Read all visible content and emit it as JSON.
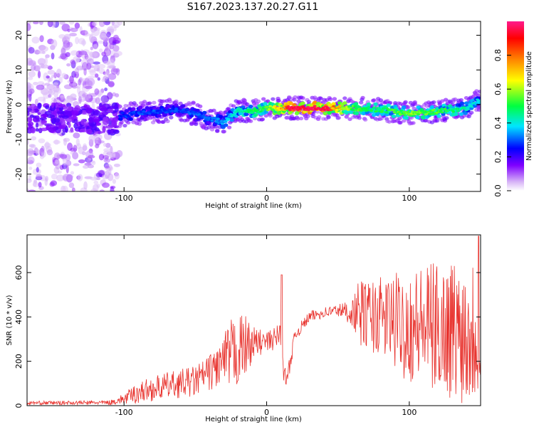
{
  "title": "S167.2023.137.20.27.G11",
  "colors": {
    "axis": "#000000",
    "snr_line": "#e8332e",
    "background": "#ffffff"
  },
  "chart_data": [
    {
      "type": "heatmap",
      "xlabel": "Height of straight line (km)",
      "ylabel": "Frequency (Hz)",
      "xlim": [
        -168,
        150
      ],
      "ylim": [
        -25,
        24
      ],
      "x_ticks": [
        -100,
        0,
        100
      ],
      "y_ticks": [
        -20,
        -10,
        0,
        10,
        20
      ],
      "grid": false,
      "colormap": {
        "label": "Normalized spectral amplitude",
        "range": [
          0.0,
          1.0
        ],
        "ticks": [
          0.0,
          0.2,
          0.4,
          0.6,
          0.8
        ],
        "tick_labels": [
          "0.0",
          "0.2",
          "0.4",
          "0.6",
          "0.8"
        ],
        "colors": [
          "#ffffff",
          "#d9b8f7",
          "#7f00ff",
          "#0000ff",
          "#00e5ff",
          "#00ff40",
          "#ffff00",
          "#ff7f00",
          "#ff0000",
          "#ff1a8c"
        ]
      },
      "ridge": {
        "x": [
          -100,
          -80,
          -60,
          -40,
          -30,
          -20,
          -10,
          0,
          20,
          40,
          60,
          80,
          100,
          120,
          140,
          148
        ],
        "freq": [
          -3,
          -2,
          -1.5,
          -4,
          -5,
          -1.5,
          -2,
          -1,
          -1,
          -1,
          -1,
          -1.5,
          -2.5,
          -2,
          -1,
          1
        ],
        "amplitude": [
          0.28,
          0.3,
          0.3,
          0.32,
          0.35,
          0.45,
          0.5,
          0.55,
          0.95,
          0.92,
          0.55,
          0.5,
          0.6,
          0.55,
          0.45,
          0.4
        ]
      },
      "noise_region_x": [
        -168,
        -103
      ]
    },
    {
      "type": "line",
      "xlabel": "Height of straight line (km)",
      "ylabel": "SNR (10 * v/v)",
      "xlim": [
        -168,
        150
      ],
      "ylim": [
        0,
        770
      ],
      "x_ticks": [
        -100,
        0,
        100
      ],
      "y_ticks": [
        0,
        200,
        400,
        600
      ],
      "grid": false,
      "envelope": {
        "x": [
          -168,
          -110,
          -100,
          -90,
          -70,
          -50,
          -40,
          -30,
          -25,
          -20,
          -15,
          -10,
          -5,
          0,
          5,
          10,
          11,
          12,
          14,
          16,
          20,
          30,
          40,
          50,
          60,
          65,
          70,
          80,
          90,
          100,
          110,
          120,
          130,
          140,
          150
        ],
        "mean": [
          12,
          14,
          30,
          60,
          90,
          110,
          150,
          200,
          220,
          250,
          270,
          280,
          285,
          285,
          300,
          330,
          300,
          160,
          110,
          180,
          320,
          400,
          420,
          430,
          420,
          420,
          410,
          400,
          380,
          360,
          360,
          350,
          350,
          330,
          360
        ],
        "amp": [
          8,
          10,
          25,
          50,
          60,
          70,
          80,
          120,
          170,
          170,
          140,
          80,
          60,
          50,
          50,
          60,
          250,
          40,
          30,
          40,
          30,
          25,
          25,
          30,
          60,
          150,
          160,
          180,
          220,
          260,
          280,
          300,
          320,
          330,
          350
        ]
      },
      "series": [
        {
          "color": "#e8332e"
        }
      ]
    }
  ]
}
